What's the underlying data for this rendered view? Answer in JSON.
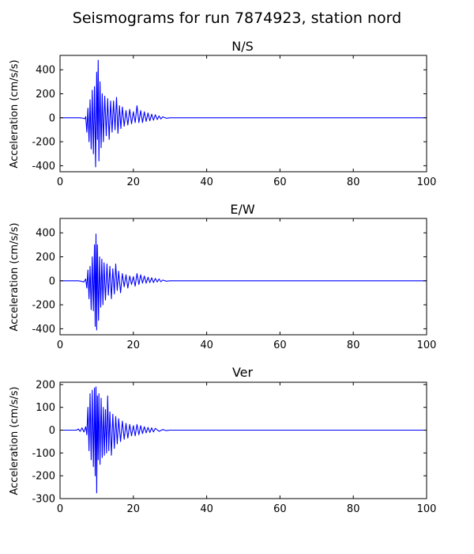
{
  "suptitle": "Seismograms for run 7874923, station nord",
  "line_color": "#0000ff",
  "chart_data": [
    {
      "type": "line",
      "title": "N/S",
      "xlabel": "",
      "ylabel": "Acceleration (cm/s/s)",
      "xlim": [
        0,
        100
      ],
      "ylim": [
        -450,
        520
      ],
      "xticks": [
        "0",
        "20",
        "40",
        "60",
        "80",
        "100"
      ],
      "yticks": [
        "-400",
        "-200",
        "0",
        "200",
        "400"
      ],
      "series": [
        {
          "points": [
            [
              0,
              0
            ],
            [
              5,
              0
            ],
            [
              6,
              -2
            ],
            [
              6.8,
              -8
            ],
            [
              7,
              10
            ],
            [
              7.3,
              -120
            ],
            [
              7.6,
              80
            ],
            [
              7.9,
              -200
            ],
            [
              8.2,
              150
            ],
            [
              8.5,
              -260
            ],
            [
              8.8,
              230
            ],
            [
              9.1,
              -300
            ],
            [
              9.4,
              260
            ],
            [
              9.7,
              -410
            ],
            [
              10,
              380
            ],
            [
              10.2,
              -180
            ],
            [
              10.4,
              480
            ],
            [
              10.6,
              -360
            ],
            [
              10.9,
              300
            ],
            [
              11.2,
              -250
            ],
            [
              11.5,
              200
            ],
            [
              11.8,
              -200
            ],
            [
              12.2,
              180
            ],
            [
              12.6,
              -150
            ],
            [
              13,
              160
            ],
            [
              13.4,
              -180
            ],
            [
              13.8,
              140
            ],
            [
              14.2,
              -120
            ],
            [
              14.6,
              140
            ],
            [
              15,
              -100
            ],
            [
              15.4,
              170
            ],
            [
              15.8,
              -130
            ],
            [
              16.2,
              100
            ],
            [
              16.6,
              -90
            ],
            [
              17,
              90
            ],
            [
              17.5,
              -70
            ],
            [
              18,
              60
            ],
            [
              18.5,
              -60
            ],
            [
              19,
              70
            ],
            [
              19.5,
              -50
            ],
            [
              20,
              50
            ],
            [
              20.5,
              -40
            ],
            [
              21,
              100
            ],
            [
              21.5,
              -40
            ],
            [
              22,
              60
            ],
            [
              22.5,
              -40
            ],
            [
              23,
              50
            ],
            [
              23.5,
              -30
            ],
            [
              24,
              40
            ],
            [
              24.5,
              -25
            ],
            [
              25,
              30
            ],
            [
              25.5,
              -20
            ],
            [
              26,
              25
            ],
            [
              26.5,
              -15
            ],
            [
              27,
              15
            ],
            [
              27.5,
              -10
            ],
            [
              28,
              8
            ],
            [
              29,
              -4
            ],
            [
              30,
              0
            ],
            [
              100,
              0
            ]
          ]
        }
      ]
    },
    {
      "type": "line",
      "title": "E/W",
      "xlabel": "",
      "ylabel": "Acceleration (cm/s/s)",
      "xlim": [
        0,
        100
      ],
      "ylim": [
        -450,
        520
      ],
      "xticks": [
        "0",
        "20",
        "40",
        "60",
        "80",
        "100"
      ],
      "yticks": [
        "-400",
        "-200",
        "0",
        "200",
        "400"
      ],
      "series": [
        {
          "points": [
            [
              0,
              0
            ],
            [
              5,
              0
            ],
            [
              6,
              -5
            ],
            [
              6.5,
              -10
            ],
            [
              7,
              15
            ],
            [
              7.3,
              -60
            ],
            [
              7.6,
              90
            ],
            [
              7.9,
              -150
            ],
            [
              8.2,
              120
            ],
            [
              8.5,
              -240
            ],
            [
              8.8,
              200
            ],
            [
              9.1,
              -250
            ],
            [
              9.4,
              300
            ],
            [
              9.6,
              -380
            ],
            [
              9.8,
              390
            ],
            [
              10,
              -410
            ],
            [
              10.2,
              300
            ],
            [
              10.5,
              -330
            ],
            [
              10.8,
              200
            ],
            [
              11.1,
              -220
            ],
            [
              11.4,
              180
            ],
            [
              11.7,
              -200
            ],
            [
              12,
              150
            ],
            [
              12.4,
              -160
            ],
            [
              12.8,
              140
            ],
            [
              13.2,
              -120
            ],
            [
              13.6,
              120
            ],
            [
              14,
              -150
            ],
            [
              14.4,
              100
            ],
            [
              14.8,
              -110
            ],
            [
              15.2,
              140
            ],
            [
              15.6,
              -80
            ],
            [
              16,
              80
            ],
            [
              16.5,
              -100
            ],
            [
              17,
              60
            ],
            [
              17.5,
              -50
            ],
            [
              18,
              50
            ],
            [
              18.5,
              -60
            ],
            [
              19,
              40
            ],
            [
              19.5,
              -30
            ],
            [
              20,
              35
            ],
            [
              20.5,
              -45
            ],
            [
              21,
              60
            ],
            [
              21.5,
              -30
            ],
            [
              22,
              50
            ],
            [
              22.5,
              -20
            ],
            [
              23,
              40
            ],
            [
              23.5,
              -20
            ],
            [
              24,
              30
            ],
            [
              24.5,
              -15
            ],
            [
              25,
              25
            ],
            [
              25.5,
              -15
            ],
            [
              26,
              20
            ],
            [
              26.5,
              -10
            ],
            [
              27,
              15
            ],
            [
              27.5,
              -8
            ],
            [
              28,
              6
            ],
            [
              29,
              -3
            ],
            [
              30,
              0
            ],
            [
              100,
              0
            ]
          ]
        }
      ]
    },
    {
      "type": "line",
      "title": "Ver",
      "xlabel": "",
      "ylabel": "Acceleration (cm/s/s)",
      "xlim": [
        0,
        100
      ],
      "ylim": [
        -300,
        210
      ],
      "xticks": [
        "0",
        "20",
        "40",
        "60",
        "80",
        "100"
      ],
      "yticks": [
        "-300",
        "-200",
        "-100",
        "0",
        "100",
        "200"
      ],
      "series": [
        {
          "points": [
            [
              0,
              0
            ],
            [
              4.5,
              0
            ],
            [
              5,
              5
            ],
            [
              5.5,
              -5
            ],
            [
              6,
              10
            ],
            [
              6.5,
              -8
            ],
            [
              7,
              15
            ],
            [
              7.3,
              -20
            ],
            [
              7.6,
              100
            ],
            [
              7.9,
              -90
            ],
            [
              8.2,
              160
            ],
            [
              8.5,
              -130
            ],
            [
              8.8,
              175
            ],
            [
              9.1,
              -160
            ],
            [
              9.4,
              185
            ],
            [
              9.6,
              -200
            ],
            [
              9.8,
              190
            ],
            [
              10,
              -275
            ],
            [
              10.2,
              150
            ],
            [
              10.4,
              -130
            ],
            [
              10.6,
              160
            ],
            [
              10.9,
              -150
            ],
            [
              11.2,
              140
            ],
            [
              11.5,
              -120
            ],
            [
              11.8,
              100
            ],
            [
              12.1,
              -110
            ],
            [
              12.4,
              90
            ],
            [
              12.7,
              -100
            ],
            [
              13,
              150
            ],
            [
              13.3,
              -90
            ],
            [
              13.6,
              80
            ],
            [
              14,
              -110
            ],
            [
              14.4,
              70
            ],
            [
              14.8,
              -80
            ],
            [
              15.2,
              60
            ],
            [
              15.6,
              -60
            ],
            [
              16,
              50
            ],
            [
              16.5,
              -50
            ],
            [
              17,
              40
            ],
            [
              17.5,
              -40
            ],
            [
              18,
              30
            ],
            [
              18.5,
              -35
            ],
            [
              19,
              25
            ],
            [
              19.5,
              -25
            ],
            [
              20,
              20
            ],
            [
              20.5,
              -25
            ],
            [
              21,
              25
            ],
            [
              21.5,
              -20
            ],
            [
              22,
              20
            ],
            [
              22.5,
              -15
            ],
            [
              23,
              15
            ],
            [
              23.5,
              -12
            ],
            [
              24,
              12
            ],
            [
              24.5,
              -10
            ],
            [
              25,
              10
            ],
            [
              25.5,
              -8
            ],
            [
              26,
              8
            ],
            [
              27,
              -5
            ],
            [
              28,
              3
            ],
            [
              29,
              -2
            ],
            [
              30,
              0
            ],
            [
              100,
              0
            ]
          ]
        }
      ]
    }
  ]
}
